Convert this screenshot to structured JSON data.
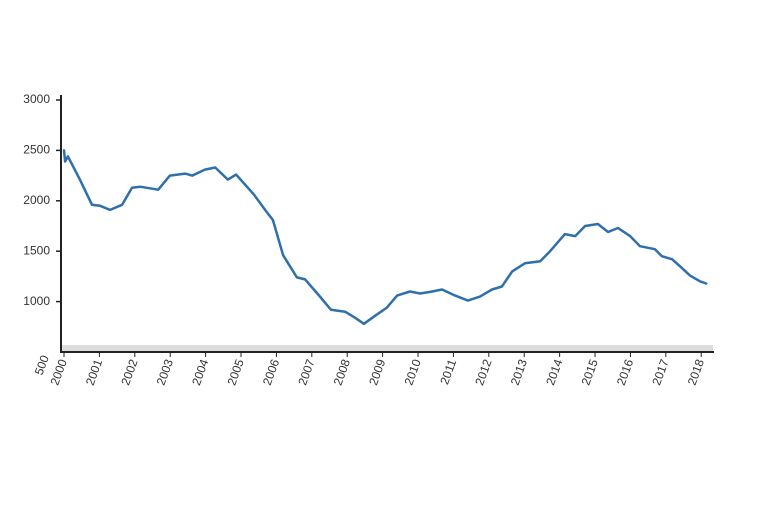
{
  "chart_data": {
    "type": "line",
    "x": [
      2000.0,
      2000.03,
      2000.11,
      2000.45,
      2000.79,
      2001.02,
      2001.3,
      2001.64,
      2001.92,
      2002.15,
      2002.66,
      2002.99,
      2003.42,
      2003.62,
      2003.98,
      2004.27,
      2004.63,
      2004.86,
      2005.37,
      2005.68,
      2005.9,
      2006.19,
      2006.58,
      2006.81,
      2007.18,
      2007.54,
      2007.94,
      2008.22,
      2008.47,
      2008.79,
      2009.12,
      2009.41,
      2009.77,
      2010.06,
      2010.4,
      2010.68,
      2011.05,
      2011.41,
      2011.75,
      2012.09,
      2012.37,
      2012.66,
      2013.02,
      2013.45,
      2013.73,
      2014.15,
      2014.44,
      2014.72,
      2015.08,
      2015.37,
      2015.65,
      2015.99,
      2016.27,
      2016.69,
      2016.89,
      2017.18,
      2017.4,
      2017.68,
      2017.97,
      2018.14
    ],
    "series": [
      {
        "color": "#2e6fae",
        "values": [
          2500,
          2390,
          2440,
          2210,
          1960,
          1950,
          1910,
          1960,
          2130,
          2140,
          2110,
          2250,
          2270,
          2250,
          2310,
          2330,
          2210,
          2260,
          2060,
          1910,
          1810,
          1460,
          1240,
          1220,
          1070,
          920,
          900,
          840,
          780,
          860,
          940,
          1060,
          1100,
          1080,
          1100,
          1120,
          1060,
          1010,
          1050,
          1120,
          1150,
          1300,
          1380,
          1400,
          1500,
          1670,
          1650,
          1750,
          1770,
          1690,
          1730,
          1650,
          1550,
          1520,
          1450,
          1420,
          1350,
          1260,
          1200,
          1180
        ]
      }
    ],
    "xlim": [
      2000,
      2018.4
    ],
    "xticks": [
      2000,
      2001,
      2002,
      2003,
      2004,
      2005,
      2006,
      2007,
      2008,
      2009,
      2010,
      2011,
      2012,
      2013,
      2014,
      2015,
      2016,
      2017,
      2018
    ],
    "ylim": [
      500,
      3000
    ],
    "yticks": [
      1000,
      1500,
      2000,
      2500,
      3000
    ],
    "ylabel_rotated": [
      500
    ]
  }
}
